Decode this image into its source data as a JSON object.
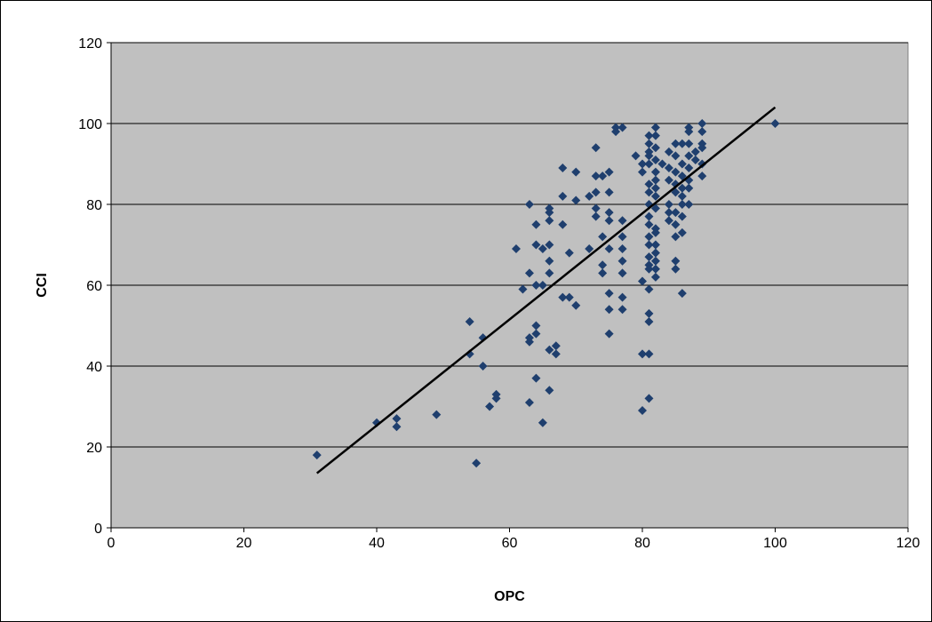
{
  "chart_data": {
    "type": "scatter",
    "title": "",
    "xlabel": "OPC",
    "ylabel": "CCI",
    "xlim": [
      0,
      120
    ],
    "ylim": [
      0,
      120
    ],
    "x_ticks": [
      0,
      20,
      40,
      60,
      80,
      100,
      120
    ],
    "y_ticks": [
      0,
      20,
      40,
      60,
      80,
      100,
      120
    ],
    "grid": "horizontal",
    "legend": "none",
    "colors": {
      "plot_background": "#c0c0c0",
      "marker": "#1f3f6e",
      "trendline": "#000000",
      "gridline": "#000000"
    },
    "trendline": {
      "x": [
        31,
        100
      ],
      "y": [
        13.5,
        104
      ]
    },
    "points": [
      [
        31,
        18
      ],
      [
        40,
        26
      ],
      [
        43,
        25
      ],
      [
        43,
        27
      ],
      [
        49,
        28
      ],
      [
        54,
        51
      ],
      [
        54,
        43
      ],
      [
        55,
        16
      ],
      [
        56,
        47
      ],
      [
        56,
        40
      ],
      [
        57,
        30
      ],
      [
        58,
        32
      ],
      [
        58,
        33
      ],
      [
        61,
        69
      ],
      [
        62,
        59
      ],
      [
        63,
        80
      ],
      [
        63,
        47
      ],
      [
        63,
        46
      ],
      [
        63,
        31
      ],
      [
        63,
        63
      ],
      [
        64,
        60
      ],
      [
        64,
        70
      ],
      [
        64,
        75
      ],
      [
        64,
        50
      ],
      [
        64,
        48
      ],
      [
        64,
        37
      ],
      [
        65,
        60
      ],
      [
        65,
        69
      ],
      [
        65,
        26
      ],
      [
        66,
        78
      ],
      [
        66,
        76
      ],
      [
        66,
        70
      ],
      [
        66,
        66
      ],
      [
        66,
        63
      ],
      [
        66,
        44
      ],
      [
        66,
        34
      ],
      [
        66,
        79
      ],
      [
        67,
        45
      ],
      [
        67,
        43
      ],
      [
        68,
        89
      ],
      [
        68,
        82
      ],
      [
        68,
        75
      ],
      [
        68,
        57
      ],
      [
        69,
        68
      ],
      [
        69,
        57
      ],
      [
        70,
        88
      ],
      [
        70,
        81
      ],
      [
        70,
        55
      ],
      [
        72,
        82
      ],
      [
        72,
        69
      ],
      [
        73,
        94
      ],
      [
        73,
        87
      ],
      [
        73,
        83
      ],
      [
        73,
        79
      ],
      [
        73,
        77
      ],
      [
        74,
        87
      ],
      [
        74,
        72
      ],
      [
        74,
        65
      ],
      [
        74,
        63
      ],
      [
        75,
        88
      ],
      [
        75,
        83
      ],
      [
        75,
        78
      ],
      [
        75,
        76
      ],
      [
        75,
        69
      ],
      [
        75,
        58
      ],
      [
        75,
        54
      ],
      [
        75,
        48
      ],
      [
        76,
        99
      ],
      [
        76,
        98
      ],
      [
        77,
        99
      ],
      [
        77,
        76
      ],
      [
        77,
        72
      ],
      [
        77,
        69
      ],
      [
        77,
        66
      ],
      [
        77,
        63
      ],
      [
        77,
        57
      ],
      [
        77,
        54
      ],
      [
        79,
        92
      ],
      [
        80,
        90
      ],
      [
        80,
        88
      ],
      [
        80,
        61
      ],
      [
        80,
        43
      ],
      [
        80,
        29
      ],
      [
        81,
        93
      ],
      [
        81,
        92
      ],
      [
        81,
        90
      ],
      [
        81,
        59
      ],
      [
        81,
        97
      ],
      [
        81,
        95
      ],
      [
        81,
        85
      ],
      [
        81,
        83
      ],
      [
        81,
        80
      ],
      [
        81,
        77
      ],
      [
        81,
        75
      ],
      [
        81,
        72
      ],
      [
        81,
        70
      ],
      [
        81,
        67
      ],
      [
        81,
        65
      ],
      [
        81,
        64
      ],
      [
        81,
        53
      ],
      [
        81,
        51
      ],
      [
        81,
        43
      ],
      [
        81,
        32
      ],
      [
        82,
        99
      ],
      [
        82,
        97
      ],
      [
        82,
        94
      ],
      [
        82,
        91
      ],
      [
        82,
        88
      ],
      [
        82,
        86
      ],
      [
        82,
        84
      ],
      [
        82,
        82
      ],
      [
        82,
        79
      ],
      [
        82,
        74
      ],
      [
        82,
        73
      ],
      [
        82,
        70
      ],
      [
        82,
        68
      ],
      [
        82,
        66
      ],
      [
        82,
        64
      ],
      [
        82,
        62
      ],
      [
        83,
        90
      ],
      [
        84,
        93
      ],
      [
        84,
        89
      ],
      [
        84,
        86
      ],
      [
        84,
        80
      ],
      [
        84,
        78
      ],
      [
        84,
        76
      ],
      [
        85,
        95
      ],
      [
        85,
        92
      ],
      [
        85,
        88
      ],
      [
        85,
        85
      ],
      [
        85,
        83
      ],
      [
        85,
        78
      ],
      [
        85,
        75
      ],
      [
        85,
        72
      ],
      [
        85,
        66
      ],
      [
        85,
        64
      ],
      [
        86,
        95
      ],
      [
        86,
        90
      ],
      [
        86,
        87
      ],
      [
        86,
        84
      ],
      [
        86,
        82
      ],
      [
        86,
        80
      ],
      [
        86,
        77
      ],
      [
        86,
        73
      ],
      [
        86,
        58
      ],
      [
        87,
        99
      ],
      [
        87,
        98
      ],
      [
        87,
        95
      ],
      [
        87,
        92
      ],
      [
        87,
        89
      ],
      [
        87,
        86
      ],
      [
        87,
        84
      ],
      [
        87,
        80
      ],
      [
        88,
        93
      ],
      [
        88,
        91
      ],
      [
        89,
        100
      ],
      [
        89,
        98
      ],
      [
        89,
        95
      ],
      [
        89,
        94
      ],
      [
        89,
        90
      ],
      [
        89,
        87
      ],
      [
        100,
        100
      ]
    ]
  }
}
